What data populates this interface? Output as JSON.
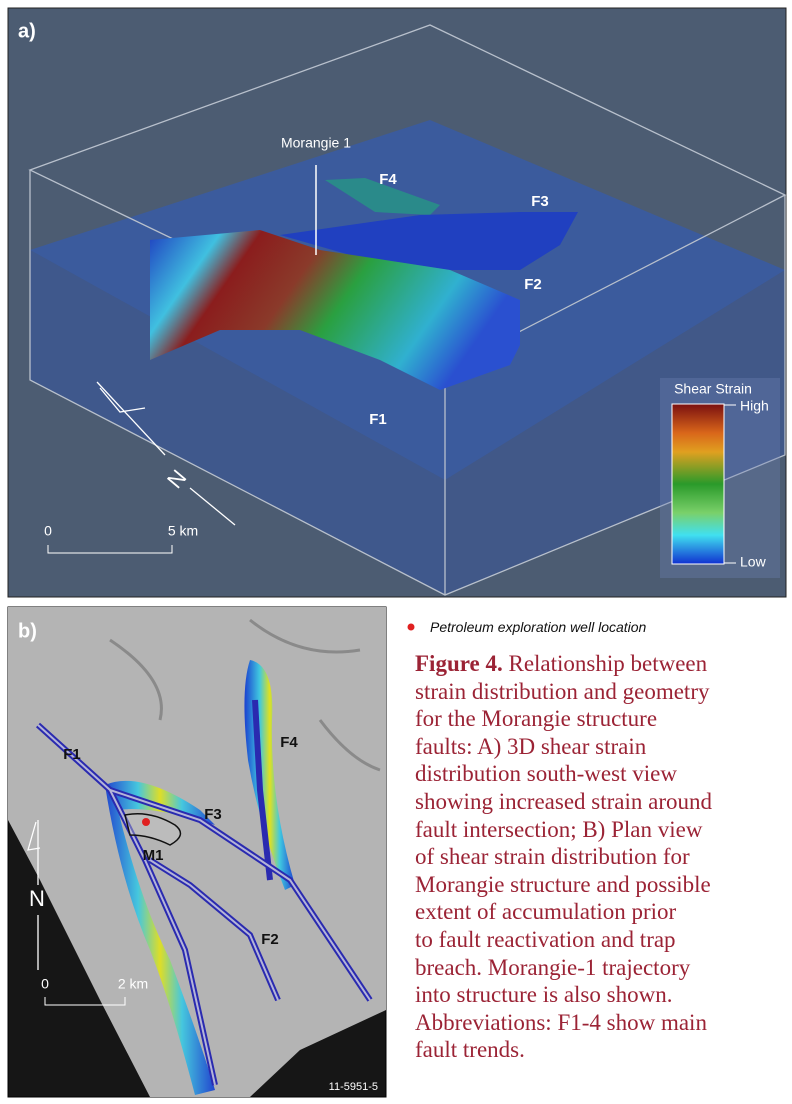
{
  "panel_a": {
    "label": "a)",
    "well_label": "Morangie 1",
    "fault_labels": {
      "f4": "F4",
      "f3": "F3",
      "f2": "F2",
      "f1": "F1"
    },
    "colorbar": {
      "title": "Shear Strain",
      "high": "High",
      "low": "Low"
    },
    "north": "N",
    "scale": {
      "zero": "0",
      "distance": "5 km"
    }
  },
  "panel_b": {
    "label": "b)",
    "fault_labels": {
      "f1": "F1",
      "f3": "F3",
      "f4": "F4",
      "f2": "F2"
    },
    "well_label": "M1",
    "north": "N",
    "scale": {
      "zero": "0",
      "distance": "2 km"
    },
    "figure_id": "11-5951-5"
  },
  "legend": {
    "text": "Petroleum exploration well location"
  },
  "caption": {
    "label": "Figure 4.",
    "lines": [
      "Relationship between",
      "strain distribution and geometry",
      "for the Morangie structure",
      "faults: A) 3D shear strain",
      "distribution south-west view",
      "showing increased strain around",
      "fault intersection; B) Plan view",
      "of shear strain distribution for",
      "Morangie structure and possible",
      "extent of accumulation prior",
      "to fault reactivation and trap",
      "breach. Morangie-1 trajectory",
      "into structure is also shown.",
      "Abbreviations: F1-4 show main",
      "fault trends."
    ]
  }
}
